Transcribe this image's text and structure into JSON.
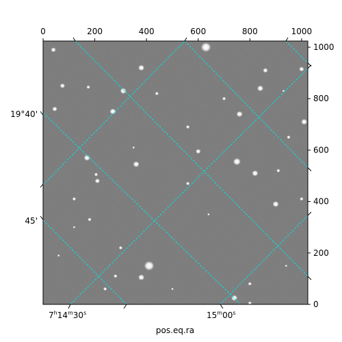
{
  "chart_data": {
    "type": "sky-image",
    "projection_note": "",
    "axes": {
      "top_x": {
        "ticks": [
          "0",
          "200",
          "400",
          "600",
          "800",
          "1000"
        ],
        "values": [
          0,
          200,
          400,
          600,
          800,
          1000
        ],
        "range": [
          0,
          1024
        ]
      },
      "right_y": {
        "ticks": [
          "0",
          "200",
          "400",
          "600",
          "800",
          "1000"
        ],
        "values": [
          0,
          200,
          400,
          600,
          800,
          1000
        ],
        "range": [
          0,
          1024
        ]
      },
      "bottom_ra": {
        "label": "pos.eq.ra",
        "ticks": [
          {
            "h": "7",
            "hsup": "h",
            "m": "14",
            "msup": "m",
            "s": "30",
            "ssup": "s"
          },
          {
            "m": "15",
            "msup": "m",
            "s": "00",
            "ssup": "s"
          }
        ]
      },
      "left_dec": {
        "ticks": [
          "19°40'",
          "45'"
        ]
      }
    },
    "grid": {
      "on": true,
      "color": "#00e5e5",
      "style": "dashed"
    },
    "image": {
      "background": "#7a7a7a",
      "colormap": "gray"
    },
    "stars": [
      [
        630,
        1000,
        7
      ],
      [
        380,
        920,
        4
      ],
      [
        860,
        910,
        3
      ],
      [
        1000,
        915,
        3
      ],
      [
        840,
        840,
        4
      ],
      [
        310,
        830,
        4
      ],
      [
        75,
        850,
        3
      ],
      [
        175,
        845,
        2
      ],
      [
        440,
        820,
        2
      ],
      [
        40,
        990,
        3
      ],
      [
        700,
        800,
        2
      ],
      [
        270,
        750,
        4
      ],
      [
        760,
        740,
        4
      ],
      [
        45,
        760,
        3
      ],
      [
        1010,
        710,
        4
      ],
      [
        600,
        595,
        3
      ],
      [
        750,
        555,
        5
      ],
      [
        820,
        510,
        4
      ],
      [
        360,
        545,
        4
      ],
      [
        170,
        570,
        4
      ],
      [
        210,
        480,
        3
      ],
      [
        205,
        505,
        2
      ],
      [
        120,
        410,
        2
      ],
      [
        900,
        390,
        4
      ],
      [
        1000,
        410,
        2
      ],
      [
        180,
        330,
        2
      ],
      [
        300,
        220,
        2
      ],
      [
        410,
        150,
        7
      ],
      [
        380,
        105,
        4
      ],
      [
        280,
        110,
        2
      ],
      [
        800,
        80,
        2
      ],
      [
        740,
        25,
        4
      ],
      [
        800,
        5,
        2
      ],
      [
        120,
        300,
        1
      ],
      [
        560,
        470,
        2
      ],
      [
        950,
        650,
        2
      ],
      [
        560,
        690,
        2
      ],
      [
        350,
        610,
        1
      ],
      [
        640,
        350,
        1
      ],
      [
        910,
        520,
        2
      ],
      [
        60,
        190,
        1
      ],
      [
        500,
        60,
        1
      ],
      [
        240,
        60,
        2
      ],
      [
        940,
        150,
        1
      ],
      [
        930,
        830,
        1
      ]
    ]
  }
}
